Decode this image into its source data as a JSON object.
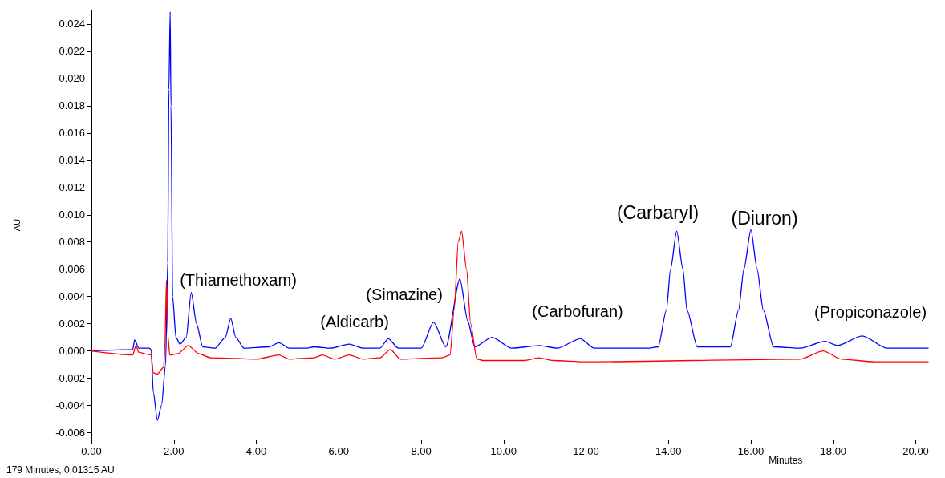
{
  "chart_data": {
    "type": "line",
    "xlabel": "Minutes",
    "ylabel": "AU",
    "xlim": [
      0,
      20.3
    ],
    "ylim": [
      -0.0065,
      0.025
    ],
    "xticks": [
      {
        "value": 0,
        "label": "0.00"
      },
      {
        "value": 2,
        "label": "2.00"
      },
      {
        "value": 4,
        "label": "4.00"
      },
      {
        "value": 6,
        "label": "6.00"
      },
      {
        "value": 8,
        "label": "8.00"
      },
      {
        "value": 10,
        "label": "10.00"
      },
      {
        "value": 12,
        "label": "12.00"
      },
      {
        "value": 14,
        "label": "14.00"
      },
      {
        "value": 16,
        "label": "16.00"
      },
      {
        "value": 18,
        "label": "18.00"
      },
      {
        "value": 20,
        "label": "20.00"
      }
    ],
    "yticks": [
      {
        "value": -0.006,
        "label": "-0.006"
      },
      {
        "value": -0.004,
        "label": "-0.004"
      },
      {
        "value": -0.002,
        "label": "-0.002"
      },
      {
        "value": 0,
        "label": "0.000"
      },
      {
        "value": 0.002,
        "label": "0.002"
      },
      {
        "value": 0.004,
        "label": "0.004"
      },
      {
        "value": 0.006,
        "label": "0.006"
      },
      {
        "value": 0.008,
        "label": "0.008"
      },
      {
        "value": 0.01,
        "label": "0.010"
      },
      {
        "value": 0.012,
        "label": "0.012"
      },
      {
        "value": 0.014,
        "label": "0.014"
      },
      {
        "value": 0.016,
        "label": "0.016"
      },
      {
        "value": 0.018,
        "label": "0.018"
      },
      {
        "value": 0.02,
        "label": "0.020"
      },
      {
        "value": 0.022,
        "label": "0.022"
      },
      {
        "value": 0.024,
        "label": "0.024"
      }
    ],
    "marker": "none",
    "line_style": "solid",
    "series": [
      {
        "color": "#0000ff",
        "x": [
          0,
          1.0,
          1.05,
          1.15,
          1.4,
          1.45,
          1.5,
          1.6,
          1.7,
          1.8,
          1.85,
          1.88,
          1.91,
          1.93,
          1.97,
          2.05,
          2.15,
          2.3,
          2.42,
          2.55,
          2.7,
          3.0,
          3.25,
          3.38,
          3.5,
          3.7,
          4.3,
          4.55,
          4.8,
          5.2,
          5.4,
          5.8,
          6.25,
          6.6,
          7.0,
          7.2,
          7.45,
          8.0,
          8.3,
          8.6,
          8.94,
          9.13,
          9.3,
          9.72,
          10.2,
          10.87,
          11.3,
          11.86,
          12.2,
          13.5,
          13.75,
          13.95,
          14.05,
          14.2,
          14.35,
          14.45,
          14.7,
          15.5,
          15.7,
          15.83,
          16.0,
          16.15,
          16.3,
          16.55,
          17.2,
          17.8,
          18.1,
          18.7,
          19.3,
          20.3
        ],
        "values": [
          0,
          0.0001,
          0.0008,
          0.0002,
          0.0002,
          0.0001,
          -0.003,
          -0.0051,
          -0.004,
          -0.001,
          0.0065,
          0.0192,
          0.0249,
          0.018,
          0.004,
          0.001,
          0.0005,
          0.001,
          0.0043,
          0.002,
          0.0003,
          0.0002,
          0.001,
          0.0024,
          0.001,
          0.0002,
          0.0003,
          0.0006,
          0.0002,
          0.0002,
          0.0003,
          0.0002,
          0.0005,
          0.0002,
          0.0002,
          0.0009,
          0.0002,
          0.0002,
          0.0021,
          0.0003,
          0.0053,
          0.0022,
          0.0003,
          0.001,
          0.0002,
          0.0004,
          0.0002,
          0.0009,
          0.0002,
          0.0002,
          0.0003,
          0.003,
          0.006,
          0.0088,
          0.006,
          0.003,
          0.0003,
          0.0003,
          0.003,
          0.006,
          0.0089,
          0.006,
          0.003,
          0.0003,
          0.0002,
          0.0007,
          0.0004,
          0.0011,
          0.0002,
          0.0002
        ]
      },
      {
        "color": "#ff0000",
        "x": [
          0,
          1.0,
          1.08,
          1.15,
          1.45,
          1.5,
          1.6,
          1.75,
          1.78,
          1.82,
          1.86,
          1.9,
          2.1,
          2.35,
          2.6,
          2.9,
          4.0,
          4.55,
          4.8,
          5.4,
          5.6,
          5.9,
          6.25,
          6.6,
          7.0,
          7.25,
          7.5,
          8.5,
          8.7,
          8.8,
          8.9,
          8.98,
          9.1,
          9.2,
          9.35,
          9.5,
          10.5,
          10.85,
          11.2,
          12.0,
          17.2,
          17.75,
          18.2,
          19.0,
          20.3
        ],
        "values": [
          0,
          -0.0003,
          0.0004,
          -0.0001,
          -0.0003,
          -0.0016,
          -0.0017,
          -0.0012,
          0,
          0.0052,
          0.001,
          -0.0003,
          -0.0002,
          0.0004,
          -0.0002,
          -0.0005,
          -0.0006,
          -0.0003,
          -0.0006,
          -0.0005,
          -0.0003,
          -0.0006,
          -0.0003,
          -0.0006,
          -0.0005,
          0.0001,
          -0.0006,
          -0.0005,
          -0.0003,
          0.003,
          0.008,
          0.0088,
          0.006,
          0.002,
          -0.0006,
          -0.0007,
          -0.0007,
          -0.0005,
          -0.0007,
          -0.0008,
          -0.0006,
          0,
          -0.0006,
          -0.0008,
          -0.0008
        ]
      }
    ],
    "annotations": [
      "(Thiamethoxam)",
      "(Aldicarb)",
      "(Simazine)",
      "(Carbofuran)",
      "(Carbaryl)",
      "(Diuron)",
      "(Propiconazole)",
      "179 Minutes, 0.01315 AU"
    ]
  }
}
